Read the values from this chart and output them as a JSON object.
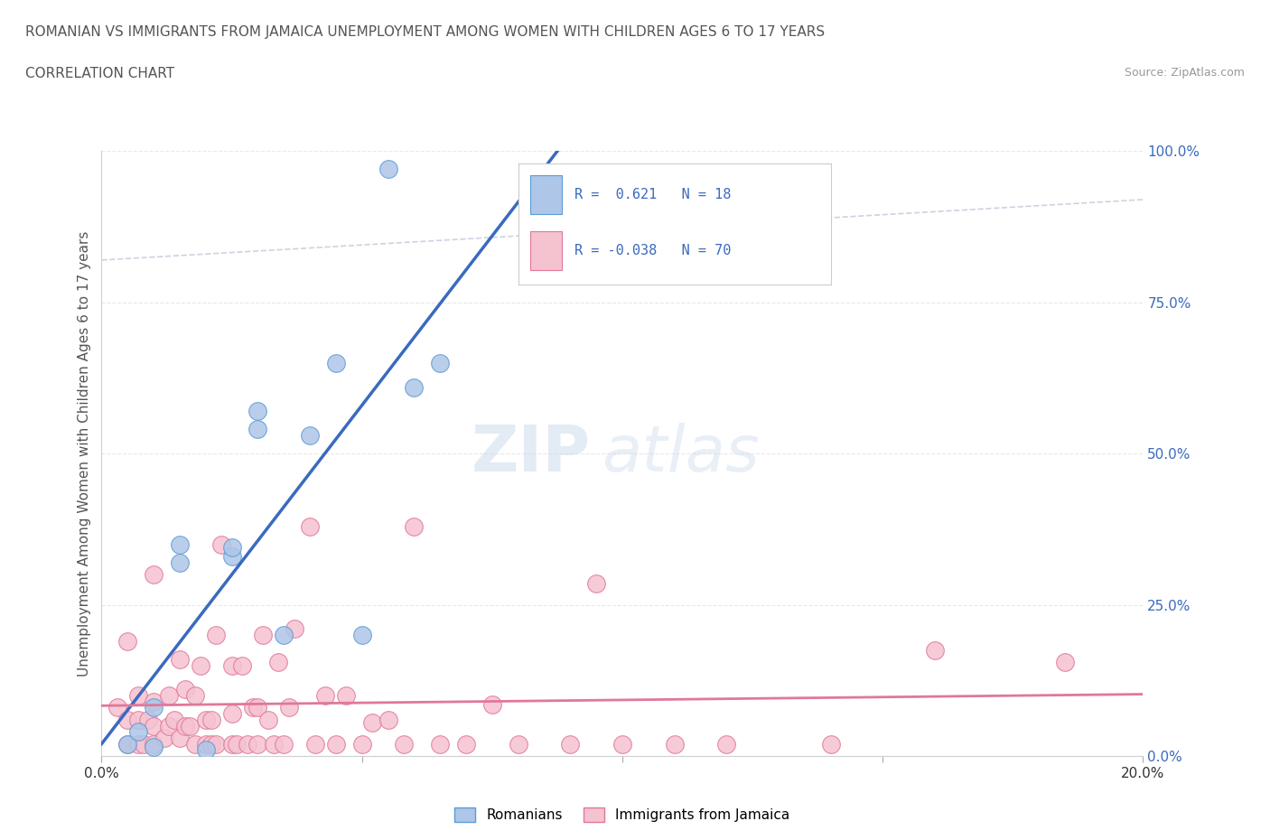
{
  "title_line1": "ROMANIAN VS IMMIGRANTS FROM JAMAICA UNEMPLOYMENT AMONG WOMEN WITH CHILDREN AGES 6 TO 17 YEARS",
  "title_line2": "CORRELATION CHART",
  "source": "Source: ZipAtlas.com",
  "ylabel": "Unemployment Among Women with Children Ages 6 to 17 years",
  "xlim": [
    0,
    0.2
  ],
  "ylim": [
    0,
    1.0
  ],
  "xticks": [
    0.0,
    0.05,
    0.1,
    0.15,
    0.2
  ],
  "xticklabels": [
    "0.0%",
    "",
    "",
    "",
    "20.0%"
  ],
  "yticks": [
    0.0,
    0.25,
    0.5,
    0.75,
    1.0
  ],
  "yticklabels": [
    "0.0%",
    "25.0%",
    "50.0%",
    "75.0%",
    "100.0%"
  ],
  "romanian_color": "#aec6e8",
  "romanian_edge": "#5b9bd5",
  "jamaican_color": "#f5c2d0",
  "jamaican_edge": "#e07898",
  "regression_romanian_color": "#3a6abf",
  "regression_jamaican_color": "#e07898",
  "regression_dashed_color": "#c0c8d8",
  "R_romanian": 0.621,
  "N_romanian": 18,
  "R_jamaican": -0.038,
  "N_jamaican": 70,
  "watermark_zip": "ZIP",
  "watermark_atlas": "atlas",
  "background_color": "#ffffff",
  "grid_color": "#e8e8e8",
  "legend_text_color": "#3a6abf",
  "romanian_points_x": [
    0.005,
    0.007,
    0.01,
    0.01,
    0.015,
    0.015,
    0.02,
    0.025,
    0.025,
    0.03,
    0.03,
    0.035,
    0.04,
    0.045,
    0.05,
    0.055,
    0.06,
    0.065
  ],
  "romanian_points_y": [
    0.02,
    0.04,
    0.015,
    0.08,
    0.32,
    0.35,
    0.01,
    0.33,
    0.345,
    0.54,
    0.57,
    0.2,
    0.53,
    0.65,
    0.2,
    0.97,
    0.61,
    0.65
  ],
  "jamaican_points_x": [
    0.003,
    0.005,
    0.005,
    0.005,
    0.007,
    0.007,
    0.007,
    0.008,
    0.009,
    0.01,
    0.01,
    0.01,
    0.01,
    0.012,
    0.013,
    0.013,
    0.014,
    0.015,
    0.015,
    0.016,
    0.016,
    0.017,
    0.018,
    0.018,
    0.019,
    0.02,
    0.02,
    0.021,
    0.021,
    0.022,
    0.022,
    0.023,
    0.025,
    0.025,
    0.025,
    0.026,
    0.027,
    0.028,
    0.029,
    0.03,
    0.03,
    0.031,
    0.032,
    0.033,
    0.034,
    0.035,
    0.036,
    0.037,
    0.04,
    0.041,
    0.043,
    0.045,
    0.047,
    0.05,
    0.052,
    0.055,
    0.058,
    0.06,
    0.065,
    0.07,
    0.075,
    0.08,
    0.09,
    0.095,
    0.1,
    0.11,
    0.12,
    0.14,
    0.16,
    0.185
  ],
  "jamaican_points_y": [
    0.08,
    0.02,
    0.06,
    0.19,
    0.02,
    0.06,
    0.1,
    0.02,
    0.06,
    0.02,
    0.05,
    0.09,
    0.3,
    0.03,
    0.05,
    0.1,
    0.06,
    0.03,
    0.16,
    0.05,
    0.11,
    0.05,
    0.02,
    0.1,
    0.15,
    0.02,
    0.06,
    0.02,
    0.06,
    0.02,
    0.2,
    0.35,
    0.02,
    0.07,
    0.15,
    0.02,
    0.15,
    0.02,
    0.08,
    0.02,
    0.08,
    0.2,
    0.06,
    0.02,
    0.155,
    0.02,
    0.08,
    0.21,
    0.38,
    0.02,
    0.1,
    0.02,
    0.1,
    0.02,
    0.055,
    0.06,
    0.02,
    0.38,
    0.02,
    0.02,
    0.085,
    0.02,
    0.02,
    0.285,
    0.02,
    0.02,
    0.02,
    0.02,
    0.175,
    0.155
  ]
}
